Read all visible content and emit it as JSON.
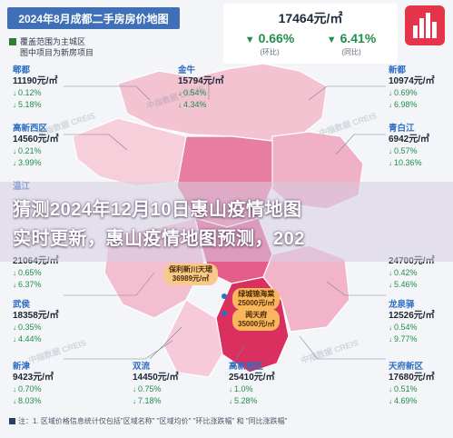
{
  "title": "2024年8月成都二手房房价地图",
  "legend_lines": [
    "覆盖范围为主城区",
    "图中项目为新房项目"
  ],
  "average": {
    "price": "17464元/㎡",
    "yoy_pct": "0.66%",
    "yoy_label": "(环比)",
    "mom_pct": "6.41%",
    "mom_label": "(同比)",
    "down_icon": "triangle-down-icon"
  },
  "watermark": "中指数据 CREIS",
  "districts": [
    {
      "key": "pidu",
      "name": "郫都",
      "price": "11190元/㎡",
      "r1": "0.12%",
      "r2": "5.18%",
      "r1_dir": "down",
      "r2_dir": "down"
    },
    {
      "key": "gaoxin_west",
      "name": "高新西区",
      "price": "14560元/㎡",
      "r1": "0.21%",
      "r2": "3.99%",
      "r1_dir": "down",
      "r2_dir": "down"
    },
    {
      "key": "wenjiang",
      "name": "温江",
      "price": "",
      "r1": "",
      "r2": "",
      "r1_dir": "down",
      "r2_dir": "down"
    },
    {
      "key": "shuangliu_w",
      "name": "",
      "price": "21064元/㎡",
      "r1": "0.65%",
      "r2": "6.37%",
      "r1_dir": "down",
      "r2_dir": "down"
    },
    {
      "key": "wuhou",
      "name": "武侯",
      "price": "18358元/㎡",
      "r1": "0.35%",
      "r2": "4.44%",
      "r1_dir": "down",
      "r2_dir": "down"
    },
    {
      "key": "xinjin",
      "name": "新津",
      "price": "9423元/㎡",
      "r1": "0.70%",
      "r2": "8.03%",
      "r1_dir": "down",
      "r2_dir": "down"
    },
    {
      "key": "jinniu",
      "name": "金牛",
      "price": "15794元/㎡",
      "r1": "0.54%",
      "r2": "4.34%",
      "r1_dir": "down",
      "r2_dir": "down"
    },
    {
      "key": "shuangliu",
      "name": "双流",
      "price": "14450元/㎡",
      "r1": "0.75%",
      "r2": "7.18%",
      "r1_dir": "down",
      "r2_dir": "down"
    },
    {
      "key": "tianfu_south",
      "name": "高新南区",
      "price": "25410元/㎡",
      "r1": "1.0%",
      "r2": "5.28%",
      "r1_dir": "down",
      "r2_dir": "down"
    },
    {
      "key": "xindu",
      "name": "新都",
      "price": "10974元/㎡",
      "r1": "0.69%",
      "r2": "6.98%",
      "r1_dir": "down",
      "r2_dir": "down"
    },
    {
      "key": "qingbaijiang",
      "name": "青白江",
      "price": "6942元/㎡",
      "r1": "0.57%",
      "r2": "10.36%",
      "r1_dir": "down",
      "r2_dir": "down"
    },
    {
      "key": "chenghua",
      "name": "",
      "price": "24700元/㎡",
      "r1": "0.42%",
      "r2": "5.46%",
      "r1_dir": "down",
      "r2_dir": "down"
    },
    {
      "key": "longquanyi",
      "name": "龙泉驿",
      "price": "12526元/㎡",
      "r1": "0.54%",
      "r2": "9.77%",
      "r1_dir": "down",
      "r2_dir": "down"
    },
    {
      "key": "tianfu_new",
      "name": "天府新区",
      "price": "17680元/㎡",
      "r1": "0.51%",
      "r2": "4.69%",
      "r1_dir": "down",
      "r2_dir": "down"
    }
  ],
  "projects": [
    {
      "name": "保利新川天珺",
      "price": "36989元/㎡"
    },
    {
      "name": "绿城锦海棠",
      "price": "25000元/㎡"
    },
    {
      "name": "阅天府",
      "price": "35000元/㎡"
    }
  ],
  "overlay": {
    "line1": "猜测2024年12月10日惠山疫情地图",
    "line2": "实时更新，惠山疫情地图预测，202"
  },
  "footnote": "注：1. 区域价格信息统计仅包括\"区域名称\"  \"区域均价\"  \"环比涨跌幅\" 和 \"同比涨跌幅\"",
  "colors": {
    "title_bg": "#3f6fb7",
    "district_name": "#2e6ec2",
    "down_green": "#1f8f4a",
    "map_light": "#f2b6c8",
    "map_mid": "#e86f98",
    "map_dark": "#d9305f"
  }
}
